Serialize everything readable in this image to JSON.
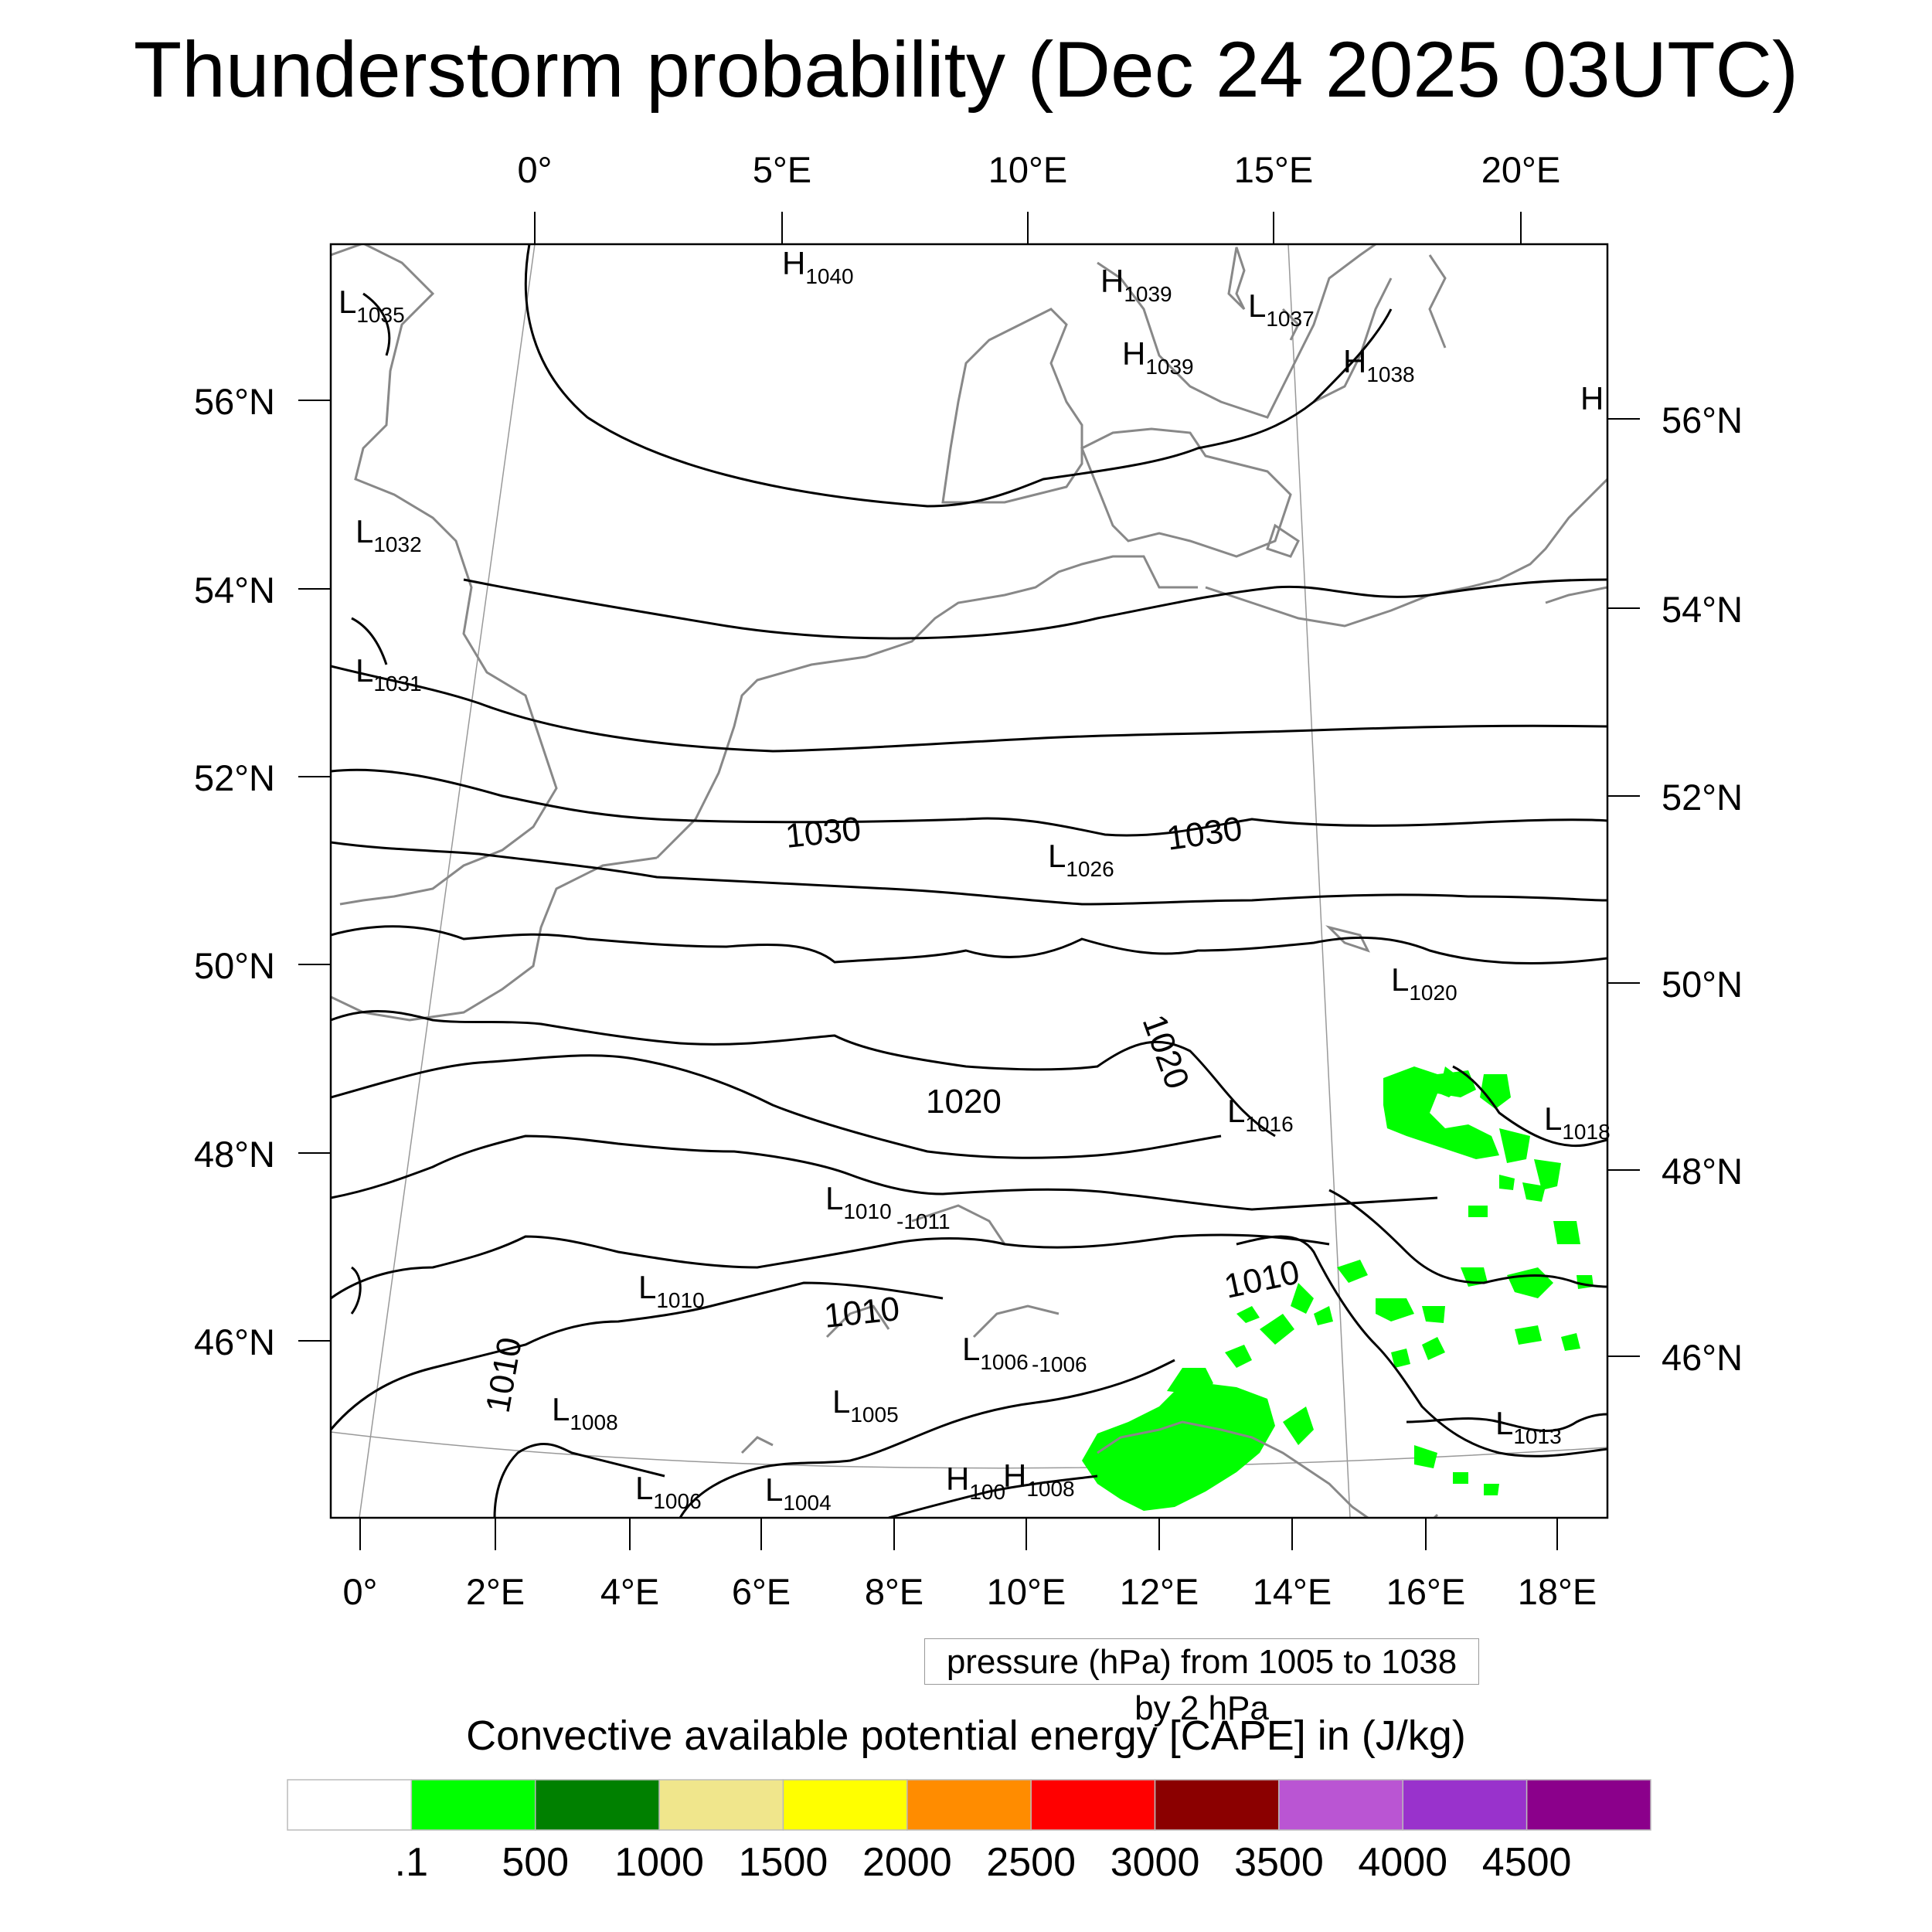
{
  "title": "Thunderstorm probability (Dec 24 2025 03UTC)",
  "top_lon_labels": [
    "0°",
    "5°E",
    "10°E",
    "15°E",
    "20°E"
  ],
  "bottom_lon_labels": [
    "0°",
    "2°E",
    "4°E",
    "6°E",
    "8°E",
    "10°E",
    "12°E",
    "14°E",
    "16°E",
    "18°E"
  ],
  "left_lat_labels": [
    "56°N",
    "54°N",
    "52°N",
    "50°N",
    "48°N",
    "46°N"
  ],
  "right_lat_labels": [
    "56°N",
    "54°N",
    "52°N",
    "50°N",
    "48°N",
    "46°N"
  ],
  "contour_labels": [
    "1030",
    "1030",
    "1020",
    "1020",
    "1010",
    "1010",
    "1010"
  ],
  "pressure_centers": [
    {
      "type": "H",
      "value": "1040"
    },
    {
      "type": "H",
      "value": "1039"
    },
    {
      "type": "H",
      "value": "1039"
    },
    {
      "type": "L",
      "value": "1037"
    },
    {
      "type": "H",
      "value": "1038"
    },
    {
      "type": "H",
      "value": ""
    },
    {
      "type": "L",
      "value": "1035"
    },
    {
      "type": "L",
      "value": "1032"
    },
    {
      "type": "L",
      "value": "1031"
    },
    {
      "type": "L",
      "value": "1026"
    },
    {
      "type": "L",
      "value": "1020"
    },
    {
      "type": "L",
      "value": "1016"
    },
    {
      "type": "L",
      "value": "1018"
    },
    {
      "type": "L",
      "value": "1010"
    },
    {
      "type": "",
      "value": "-1011"
    },
    {
      "type": "L",
      "value": "1010"
    },
    {
      "type": "L",
      "value": "1006"
    },
    {
      "type": "",
      "value": "-1006"
    },
    {
      "type": "L",
      "value": "1008"
    },
    {
      "type": "L",
      "value": "1005"
    },
    {
      "type": "L",
      "value": "1013"
    },
    {
      "type": "L",
      "value": "1006"
    },
    {
      "type": "L",
      "value": "1004"
    },
    {
      "type": "H",
      "value": "100"
    },
    {
      "type": "H",
      "value": "1008"
    }
  ],
  "pressure_info": "pressure (hPa) from 1005 to 1038 by 2 hPa",
  "colorbar": {
    "title": "Convective available potential energy [CAPE] in (J/kg)",
    "colors": [
      "#FFFFFF",
      "#00FF00",
      "#008000",
      "#F0E68C",
      "#FFFF00",
      "#FF8C00",
      "#FF0000",
      "#8B0000",
      "#BA55D3",
      "#9932CC",
      "#8B008B"
    ],
    "labels": [
      ".1",
      "500",
      "1000",
      "1500",
      "2000",
      "2500",
      "3000",
      "3500",
      "4000",
      "4500"
    ]
  },
  "cape_color": "#00FF00"
}
